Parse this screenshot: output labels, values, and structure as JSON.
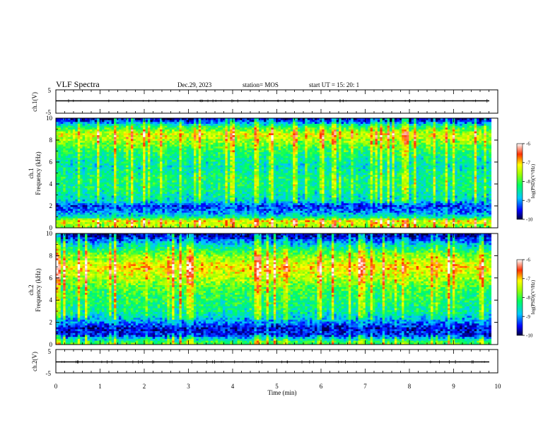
{
  "header": {
    "title": "VLF Spectra",
    "date": "Dec.29, 2023",
    "station": "station= MOS",
    "start": "start  UT =   15: 20: 1"
  },
  "chart_data": [
    {
      "type": "line",
      "name": "ch1-waveform",
      "ylabel": "ch.1(V)",
      "ylim": [
        -5,
        5
      ],
      "yticks": [
        "5",
        "-5"
      ],
      "xlim": [
        0,
        10
      ],
      "baseline": -1.5
    },
    {
      "type": "heatmap",
      "name": "ch1-spectrogram",
      "ylabel": "Frequency (kHz)",
      "channel_label": "ch.1",
      "ylim": [
        0,
        10
      ],
      "yticks": [
        "0",
        "2",
        "4",
        "6",
        "8",
        "10"
      ],
      "xlim": [
        0,
        9.85
      ],
      "colorbar": {
        "label": "log(PSD)(V²/Hz)",
        "range": [
          -10,
          -6
        ],
        "ticks": [
          "-6",
          "-7",
          "-8",
          "-9",
          "-10"
        ]
      },
      "band_profile": [
        {
          "f": 0.2,
          "level": -7.6
        },
        {
          "f": 0.6,
          "level": -7.2
        },
        {
          "f": 1.0,
          "level": -8.6
        },
        {
          "f": 1.5,
          "level": -9.2
        },
        {
          "f": 2.0,
          "level": -9.4
        },
        {
          "f": 2.5,
          "level": -8.7
        },
        {
          "f": 3.5,
          "level": -8.4
        },
        {
          "f": 4.5,
          "level": -8.3
        },
        {
          "f": 5.5,
          "level": -8.6
        },
        {
          "f": 6.5,
          "level": -8.4
        },
        {
          "f": 7.5,
          "level": -7.9
        },
        {
          "f": 8.5,
          "level": -7.3
        },
        {
          "f": 9.2,
          "level": -8.2
        },
        {
          "f": 9.8,
          "level": -9.6
        }
      ]
    },
    {
      "type": "heatmap",
      "name": "ch2-spectrogram",
      "ylabel": "Frequency (kHz)",
      "channel_label": "ch.2",
      "ylim": [
        0,
        10
      ],
      "yticks": [
        "0",
        "2",
        "4",
        "6",
        "8",
        "10"
      ],
      "xlim": [
        0,
        9.85
      ],
      "colorbar": {
        "label": "log(PSD)(V²/Hz)",
        "range": [
          -10,
          -6
        ],
        "ticks": [
          "-6",
          "-7",
          "-8",
          "-9",
          "-10"
        ]
      },
      "band_profile": [
        {
          "f": 0.2,
          "level": -8.0
        },
        {
          "f": 0.8,
          "level": -9.4
        },
        {
          "f": 1.5,
          "level": -9.6
        },
        {
          "f": 2.2,
          "level": -8.9
        },
        {
          "f": 3.0,
          "level": -8.4
        },
        {
          "f": 4.0,
          "level": -8.2
        },
        {
          "f": 5.0,
          "level": -8.0
        },
        {
          "f": 6.0,
          "level": -7.5
        },
        {
          "f": 7.0,
          "level": -7.1
        },
        {
          "f": 8.0,
          "level": -7.7
        },
        {
          "f": 9.0,
          "level": -8.7
        },
        {
          "f": 9.8,
          "level": -9.7
        }
      ]
    },
    {
      "type": "line",
      "name": "ch2-waveform",
      "ylabel": "ch.2(V)",
      "ylim": [
        -5,
        5
      ],
      "yticks": [
        "5",
        "-5"
      ],
      "xlim": [
        0,
        10
      ],
      "baseline": -1.5
    }
  ],
  "xaxis": {
    "label": "Time  (min)",
    "ticks": [
      "0",
      "1",
      "2",
      "3",
      "4",
      "5",
      "6",
      "7",
      "8",
      "9",
      "10"
    ],
    "range": [
      0,
      10
    ]
  }
}
